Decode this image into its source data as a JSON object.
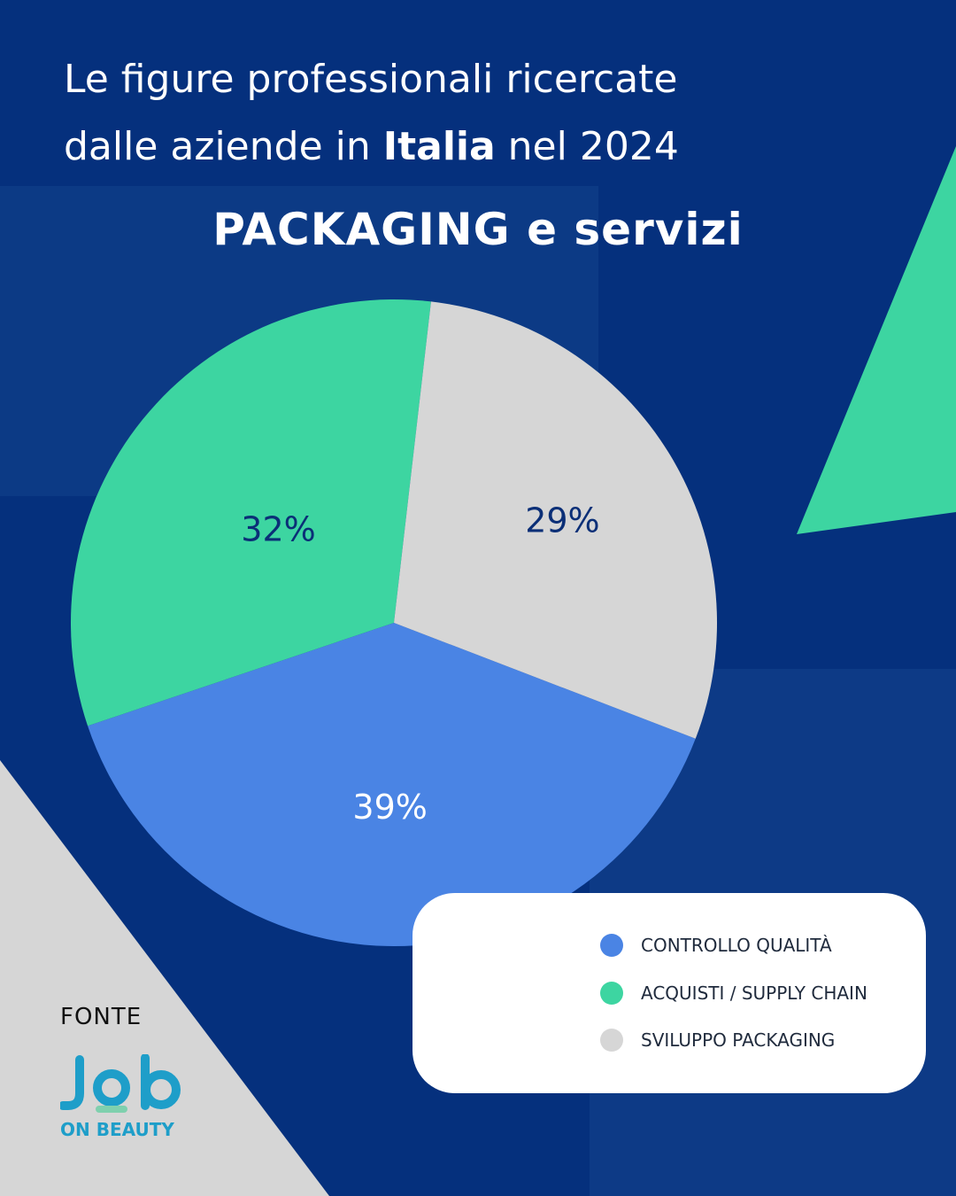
{
  "header": {
    "line1": "Le figure professionali ricercate",
    "line2_pre": "dalle aziende in ",
    "line2_bold": "Italia",
    "line2_post": " nel  2024"
  },
  "colors": {
    "background": "#05307d",
    "controllo": "#4a84e4",
    "acquisti": "#3dd5a1",
    "sviluppo": "#d6d6d6",
    "label_dark": "#0b2f77",
    "label_light": "#ffffff",
    "logo": "#1e9ec9"
  },
  "chart_data": {
    "type": "pie",
    "title": "PACKAGING e servizi",
    "slices": [
      {
        "label": "CONTROLLO QUALITÀ",
        "value": 39,
        "display": "39%"
      },
      {
        "label": "ACQUISTI / SUPPLY CHAIN",
        "value": 32,
        "display": "32%"
      },
      {
        "label": "SVILUPPO PACKAGING",
        "value": 29,
        "display": "29%"
      }
    ],
    "legend_position": "bottom-right"
  },
  "source": {
    "label": "FONTE",
    "logo_text_top": "Job",
    "logo_text_bottom": "ON BEAUTY"
  }
}
